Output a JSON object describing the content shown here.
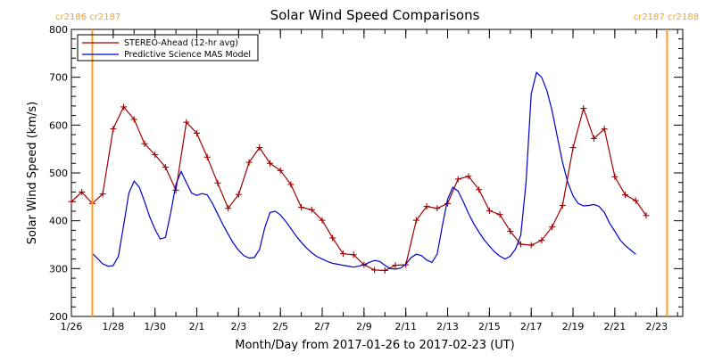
{
  "chart_data": {
    "type": "line",
    "title": "Solar Wind Speed Comparisons",
    "xlabel": "Month/Day from 2017-01-26 to 2017-02-23 (UT)",
    "ylabel": "Solar Wind Speed (km/s)",
    "xlim": [
      "2017-01-26T00:00",
      "2017-02-24T06:00"
    ],
    "ylim": [
      200,
      800
    ],
    "x_ticks": [
      {
        "date": "2017-01-26T00:00",
        "label": "1/26"
      },
      {
        "date": "2017-01-28T00:00",
        "label": "1/28"
      },
      {
        "date": "2017-01-30T00:00",
        "label": "1/30"
      },
      {
        "date": "2017-02-01T00:00",
        "label": "2/1"
      },
      {
        "date": "2017-02-03T00:00",
        "label": "2/3"
      },
      {
        "date": "2017-02-05T00:00",
        "label": "2/5"
      },
      {
        "date": "2017-02-07T00:00",
        "label": "2/7"
      },
      {
        "date": "2017-02-09T00:00",
        "label": "2/9"
      },
      {
        "date": "2017-02-11T00:00",
        "label": "2/11"
      },
      {
        "date": "2017-02-13T00:00",
        "label": "2/13"
      },
      {
        "date": "2017-02-15T00:00",
        "label": "2/15"
      },
      {
        "date": "2017-02-17T00:00",
        "label": "2/17"
      },
      {
        "date": "2017-02-19T00:00",
        "label": "2/19"
      },
      {
        "date": "2017-02-21T00:00",
        "label": "2/21"
      },
      {
        "date": "2017-02-23T00:00",
        "label": "2/23"
      }
    ],
    "y_ticks": [
      200,
      300,
      400,
      500,
      600,
      700,
      800
    ],
    "legend_position": "top-left",
    "grid": false,
    "carrington_markers": [
      {
        "date": "2017-01-27T00:00",
        "label": "cr2186 cr2187",
        "color": "#ff9f1a",
        "label_side": "left"
      },
      {
        "date": "2017-02-23T12:00",
        "label": "cr2187 cr2188",
        "color": "#ff9f1a",
        "label_side": "right"
      }
    ],
    "series": [
      {
        "name": "STEREO-Ahead (12-hr avg)",
        "color": "#a00000",
        "markers": true,
        "points": [
          [
            "2017-01-26T00:00",
            440
          ],
          [
            "2017-01-26T12:00",
            460
          ],
          [
            "2017-01-27T00:00",
            436
          ],
          [
            "2017-01-27T12:00",
            456
          ],
          [
            "2017-01-28T00:00",
            592
          ],
          [
            "2017-01-28T12:00",
            638
          ],
          [
            "2017-01-29T00:00",
            612
          ],
          [
            "2017-01-29T12:00",
            561
          ],
          [
            "2017-01-30T00:00",
            538
          ],
          [
            "2017-01-30T12:00",
            512
          ],
          [
            "2017-01-31T00:00",
            464
          ],
          [
            "2017-01-31T12:00",
            606
          ],
          [
            "2017-02-01T00:00",
            583
          ],
          [
            "2017-02-01T12:00",
            533
          ],
          [
            "2017-02-02T00:00",
            479
          ],
          [
            "2017-02-02T12:00",
            426
          ],
          [
            "2017-02-03T00:00",
            455
          ],
          [
            "2017-02-03T12:00",
            522
          ],
          [
            "2017-02-04T00:00",
            553
          ],
          [
            "2017-02-04T12:00",
            520
          ],
          [
            "2017-02-05T00:00",
            505
          ],
          [
            "2017-02-05T12:00",
            476
          ],
          [
            "2017-02-06T00:00",
            428
          ],
          [
            "2017-02-06T12:00",
            423
          ],
          [
            "2017-02-07T00:00",
            401
          ],
          [
            "2017-02-07T12:00",
            364
          ],
          [
            "2017-02-08T00:00",
            331
          ],
          [
            "2017-02-08T12:00",
            329
          ],
          [
            "2017-02-09T00:00",
            308
          ],
          [
            "2017-02-09T12:00",
            297
          ],
          [
            "2017-02-10T00:00",
            296
          ],
          [
            "2017-02-10T12:00",
            307
          ],
          [
            "2017-02-11T00:00",
            308
          ],
          [
            "2017-02-11T12:00",
            401
          ],
          [
            "2017-02-12T00:00",
            430
          ],
          [
            "2017-02-12T12:00",
            426
          ],
          [
            "2017-02-13T00:00",
            436
          ],
          [
            "2017-02-13T12:00",
            487
          ],
          [
            "2017-02-14T00:00",
            493
          ],
          [
            "2017-02-14T12:00",
            465
          ],
          [
            "2017-02-15T00:00",
            421
          ],
          [
            "2017-02-15T12:00",
            413
          ],
          [
            "2017-02-16T00:00",
            378
          ],
          [
            "2017-02-16T12:00",
            351
          ],
          [
            "2017-02-17T00:00",
            349
          ],
          [
            "2017-02-17T12:00",
            359
          ],
          [
            "2017-02-18T00:00",
            387
          ],
          [
            "2017-02-18T12:00",
            432
          ],
          [
            "2017-02-19T00:00",
            553
          ],
          [
            "2017-02-19T12:00",
            635
          ],
          [
            "2017-02-20T00:00",
            572
          ],
          [
            "2017-02-20T12:00",
            592
          ],
          [
            "2017-02-21T00:00",
            492
          ],
          [
            "2017-02-21T12:00",
            454
          ],
          [
            "2017-02-22T00:00",
            442
          ],
          [
            "2017-02-22T12:00",
            411
          ]
        ]
      },
      {
        "name": "Predictive Science MAS Model",
        "color": "#0000cc",
        "markers": false,
        "points": [
          [
            "2017-01-27T00:00",
            332
          ],
          [
            "2017-01-27T06:00",
            321
          ],
          [
            "2017-01-27T12:00",
            310
          ],
          [
            "2017-01-27T18:00",
            305
          ],
          [
            "2017-01-28T00:00",
            306
          ],
          [
            "2017-01-28T06:00",
            326
          ],
          [
            "2017-01-28T12:00",
            390
          ],
          [
            "2017-01-28T18:00",
            458
          ],
          [
            "2017-01-29T00:00",
            483
          ],
          [
            "2017-01-29T06:00",
            470
          ],
          [
            "2017-01-29T12:00",
            440
          ],
          [
            "2017-01-29T18:00",
            408
          ],
          [
            "2017-01-30T00:00",
            382
          ],
          [
            "2017-01-30T06:00",
            362
          ],
          [
            "2017-01-30T12:00",
            365
          ],
          [
            "2017-01-30T18:00",
            416
          ],
          [
            "2017-01-31T00:00",
            476
          ],
          [
            "2017-01-31T06:00",
            503
          ],
          [
            "2017-01-31T12:00",
            480
          ],
          [
            "2017-01-31T18:00",
            458
          ],
          [
            "2017-02-01T00:00",
            453
          ],
          [
            "2017-02-01T06:00",
            457
          ],
          [
            "2017-02-01T12:00",
            454
          ],
          [
            "2017-02-01T18:00",
            436
          ],
          [
            "2017-02-02T00:00",
            414
          ],
          [
            "2017-02-02T06:00",
            392
          ],
          [
            "2017-02-02T12:00",
            372
          ],
          [
            "2017-02-02T18:00",
            353
          ],
          [
            "2017-02-03T00:00",
            338
          ],
          [
            "2017-02-03T06:00",
            327
          ],
          [
            "2017-02-03T12:00",
            322
          ],
          [
            "2017-02-03T18:00",
            323
          ],
          [
            "2017-02-04T00:00",
            340
          ],
          [
            "2017-02-04T06:00",
            385
          ],
          [
            "2017-02-04T12:00",
            417
          ],
          [
            "2017-02-04T18:00",
            420
          ],
          [
            "2017-02-05T00:00",
            412
          ],
          [
            "2017-02-05T06:00",
            399
          ],
          [
            "2017-02-05T12:00",
            384
          ],
          [
            "2017-02-05T18:00",
            368
          ],
          [
            "2017-02-06T00:00",
            355
          ],
          [
            "2017-02-06T06:00",
            343
          ],
          [
            "2017-02-06T12:00",
            333
          ],
          [
            "2017-02-06T18:00",
            325
          ],
          [
            "2017-02-07T00:00",
            320
          ],
          [
            "2017-02-07T06:00",
            315
          ],
          [
            "2017-02-07T12:00",
            311
          ],
          [
            "2017-02-07T18:00",
            309
          ],
          [
            "2017-02-08T00:00",
            307
          ],
          [
            "2017-02-08T06:00",
            305
          ],
          [
            "2017-02-08T12:00",
            303
          ],
          [
            "2017-02-08T18:00",
            305
          ],
          [
            "2017-02-09T00:00",
            308
          ],
          [
            "2017-02-09T06:00",
            313
          ],
          [
            "2017-02-09T12:00",
            317
          ],
          [
            "2017-02-09T18:00",
            315
          ],
          [
            "2017-02-10T00:00",
            307
          ],
          [
            "2017-02-10T06:00",
            300
          ],
          [
            "2017-02-10T12:00",
            299
          ],
          [
            "2017-02-10T18:00",
            301
          ],
          [
            "2017-02-11T00:00",
            309
          ],
          [
            "2017-02-11T06:00",
            323
          ],
          [
            "2017-02-11T12:00",
            330
          ],
          [
            "2017-02-11T18:00",
            327
          ],
          [
            "2017-02-12T00:00",
            318
          ],
          [
            "2017-02-12T06:00",
            313
          ],
          [
            "2017-02-12T12:00",
            330
          ],
          [
            "2017-02-12T18:00",
            390
          ],
          [
            "2017-02-13T00:00",
            445
          ],
          [
            "2017-02-13T06:00",
            470
          ],
          [
            "2017-02-13T12:00",
            462
          ],
          [
            "2017-02-13T18:00",
            440
          ],
          [
            "2017-02-14T00:00",
            415
          ],
          [
            "2017-02-14T06:00",
            394
          ],
          [
            "2017-02-14T12:00",
            376
          ],
          [
            "2017-02-14T18:00",
            360
          ],
          [
            "2017-02-15T00:00",
            347
          ],
          [
            "2017-02-15T06:00",
            335
          ],
          [
            "2017-02-15T12:00",
            326
          ],
          [
            "2017-02-15T18:00",
            320
          ],
          [
            "2017-02-16T00:00",
            326
          ],
          [
            "2017-02-16T06:00",
            341
          ],
          [
            "2017-02-16T12:00",
            370
          ],
          [
            "2017-02-16T18:00",
            480
          ],
          [
            "2017-02-17T00:00",
            665
          ],
          [
            "2017-02-17T06:00",
            710
          ],
          [
            "2017-02-17T12:00",
            700
          ],
          [
            "2017-02-17T18:00",
            672
          ],
          [
            "2017-02-18T00:00",
            630
          ],
          [
            "2017-02-18T06:00",
            575
          ],
          [
            "2017-02-18T12:00",
            522
          ],
          [
            "2017-02-18T18:00",
            480
          ],
          [
            "2017-02-19T00:00",
            452
          ],
          [
            "2017-02-19T06:00",
            436
          ],
          [
            "2017-02-19T12:00",
            431
          ],
          [
            "2017-02-19T18:00",
            432
          ],
          [
            "2017-02-20T00:00",
            434
          ],
          [
            "2017-02-20T06:00",
            430
          ],
          [
            "2017-02-20T12:00",
            417
          ],
          [
            "2017-02-20T18:00",
            395
          ],
          [
            "2017-02-21T00:00",
            378
          ],
          [
            "2017-02-21T06:00",
            360
          ],
          [
            "2017-02-21T12:00",
            348
          ],
          [
            "2017-02-21T18:00",
            339
          ],
          [
            "2017-02-22T00:00",
            330
          ]
        ]
      }
    ]
  }
}
